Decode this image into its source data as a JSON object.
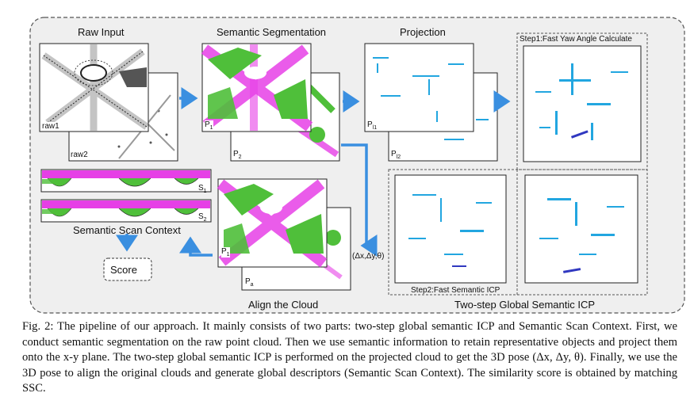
{
  "figure": {
    "labels": {
      "raw_input": "Raw Input",
      "semantic_segmentation": "Semantic Segmentation",
      "projection": "Projection",
      "step1": "Step1:Fast Yaw Angle Calculate",
      "step2": "Step2:Fast Semantic ICP",
      "two_step": "Two-step Global Semantic ICP",
      "align": "Align the Cloud",
      "ssc": "Semantic Scan Context",
      "score": "Score",
      "pose": "(Δx,Δy,θ)",
      "raw1": "raw1",
      "raw2": "raw2",
      "p1": "P",
      "p1_sub": "1",
      "p2": "P",
      "p2_sub": "2",
      "pl1": "P",
      "pl1_sub": "l1",
      "pl2": "P",
      "pl2_sub": "l2",
      "pa": "P",
      "pa_sub": "a",
      "s1": "S",
      "s1_sub": "1",
      "s2": "S",
      "s2_sub": "2"
    },
    "colors": {
      "arrow": "#3a8fe0",
      "border": "#555555",
      "magenta": "#e63fe6",
      "green": "#4fbf3a",
      "cyan": "#22a6e0",
      "panel_bg": "#efefef"
    }
  },
  "caption": {
    "prefix": "Fig. 2:",
    "text": "The pipeline of our approach. It mainly consists of two parts: two-step global semantic ICP and Semantic Scan Context. First, we conduct semantic segmentation on the raw point cloud. Then we use semantic information to retain representative objects and project them onto the x-y plane. The two-step global semantic ICP is performed on the projected cloud to get the 3D pose (Δx, Δy, θ). Finally, we use the 3D pose to align the original clouds and generate global descriptors (Semantic Scan Context). The similarity score is obtained by matching SSC."
  }
}
